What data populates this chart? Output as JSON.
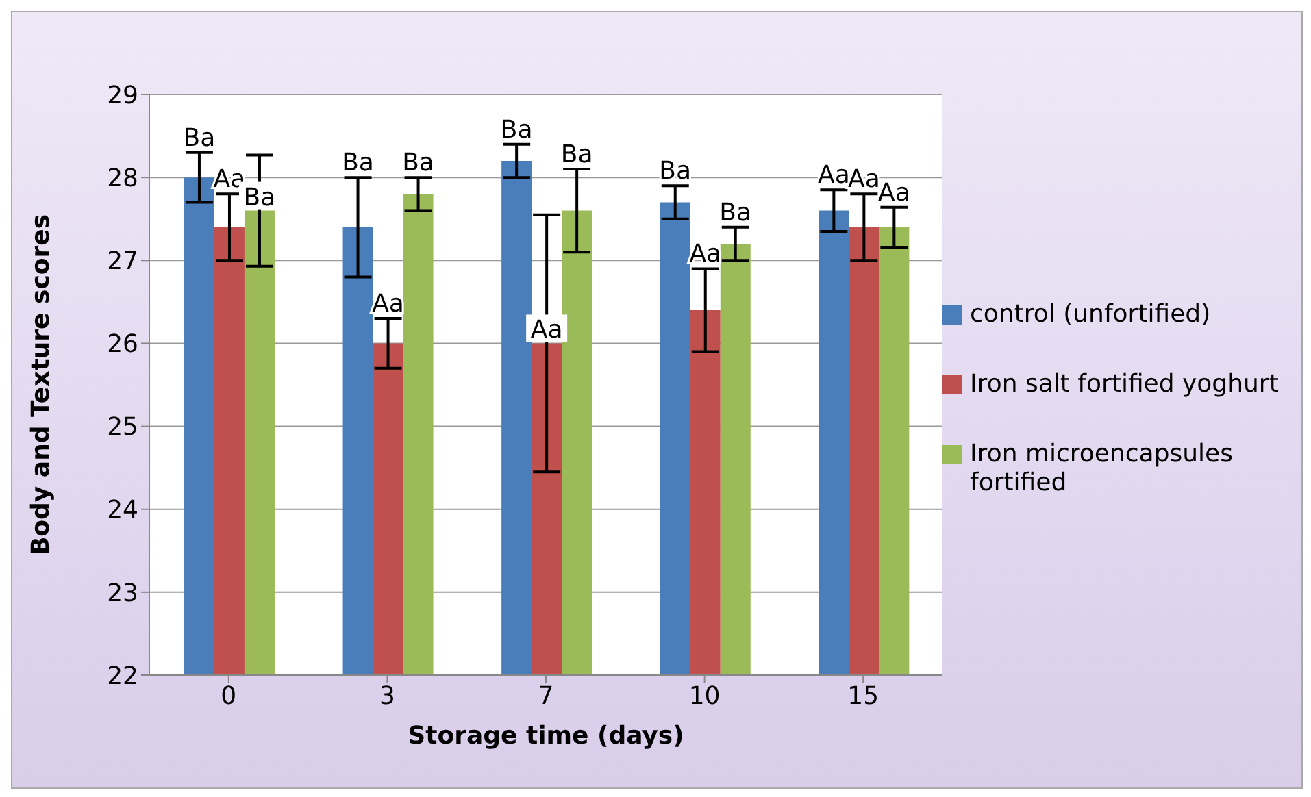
{
  "chart_data": {
    "type": "bar",
    "xlabel": "Storage time (days)",
    "ylabel": "Body and Texture scores",
    "categories": [
      "0",
      "3",
      "7",
      "10",
      "15"
    ],
    "series": [
      {
        "name": "control (unfortified)",
        "color": "#4a7ebb",
        "values": [
          28.0,
          27.4,
          28.2,
          27.7,
          27.6
        ],
        "errors": [
          0.3,
          0.6,
          0.2,
          0.2,
          0.25
        ],
        "value_labels": [
          "Ba",
          "Ba",
          "Ba",
          "Ba",
          "Aa"
        ]
      },
      {
        "name": "Iron salt fortified yoghurt",
        "color": "#c0504d",
        "values": [
          27.4,
          26.0,
          26.0,
          26.4,
          27.4
        ],
        "errors": [
          0.4,
          0.3,
          1.55,
          0.5,
          0.4
        ],
        "value_labels": [
          "Aa",
          "Aa",
          "Aa",
          "Aa",
          "Aa"
        ]
      },
      {
        "name": "Iron microencapsules fortified",
        "color": "#9bbb59",
        "values": [
          27.6,
          27.8,
          27.6,
          27.2,
          27.4
        ],
        "errors": [
          0.67,
          0.2,
          0.5,
          0.2,
          0.24
        ],
        "value_labels": [
          "Ba",
          "Ba",
          "Ba",
          "Ba",
          "Aa"
        ]
      }
    ],
    "ylim": [
      22,
      29
    ],
    "yticks": [
      22,
      23,
      24,
      25,
      26,
      27,
      28,
      29
    ],
    "grid": "y",
    "legend": "right"
  }
}
